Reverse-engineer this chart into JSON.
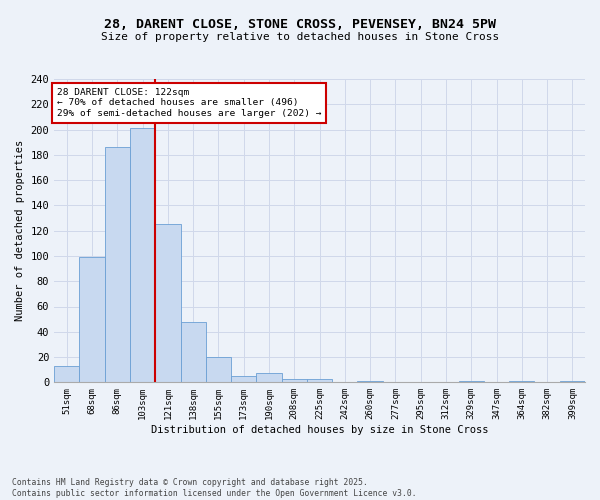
{
  "title_line1": "28, DARENT CLOSE, STONE CROSS, PEVENSEY, BN24 5PW",
  "title_line2": "Size of property relative to detached houses in Stone Cross",
  "xlabel": "Distribution of detached houses by size in Stone Cross",
  "ylabel": "Number of detached properties",
  "bar_color": "#c8d9f0",
  "bar_edge_color": "#6a9fd4",
  "categories": [
    "51sqm",
    "68sqm",
    "86sqm",
    "103sqm",
    "121sqm",
    "138sqm",
    "155sqm",
    "173sqm",
    "190sqm",
    "208sqm",
    "225sqm",
    "242sqm",
    "260sqm",
    "277sqm",
    "295sqm",
    "312sqm",
    "329sqm",
    "347sqm",
    "364sqm",
    "382sqm",
    "399sqm"
  ],
  "values": [
    13,
    99,
    186,
    201,
    125,
    48,
    20,
    5,
    7,
    3,
    3,
    0,
    1,
    0,
    0,
    0,
    1,
    0,
    1,
    0,
    1
  ],
  "ylim": [
    0,
    240
  ],
  "yticks": [
    0,
    20,
    40,
    60,
    80,
    100,
    120,
    140,
    160,
    180,
    200,
    220,
    240
  ],
  "property_label": "28 DARENT CLOSE: 122sqm",
  "annotation_line1": "← 70% of detached houses are smaller (496)",
  "annotation_line2": "29% of semi-detached houses are larger (202) →",
  "vline_x": 3.5,
  "vline_color": "#cc0000",
  "annotation_box_color": "#ffffff",
  "annotation_box_edge": "#cc0000",
  "grid_color": "#d0d8ea",
  "bg_color": "#edf2f9",
  "footnote1": "Contains HM Land Registry data © Crown copyright and database right 2025.",
  "footnote2": "Contains public sector information licensed under the Open Government Licence v3.0."
}
